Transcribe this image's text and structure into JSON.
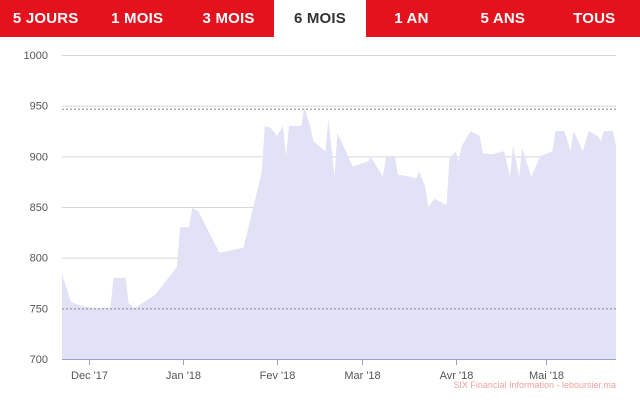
{
  "tabs": [
    {
      "label": "5 JOURS",
      "active": false
    },
    {
      "label": "1 MOIS",
      "active": false
    },
    {
      "label": "3 MOIS",
      "active": false
    },
    {
      "label": "6 MOIS",
      "active": true
    },
    {
      "label": "1 AN",
      "active": false
    },
    {
      "label": "5 ANS",
      "active": false
    },
    {
      "label": "TOUS",
      "active": false
    }
  ],
  "credit": "SIX Financial Information - leboursier.ma",
  "colors": {
    "tab_bg": "#e3121c",
    "tab_text": "#ffffff",
    "active_tab_bg": "#ffffff",
    "active_tab_text": "#333333",
    "area_fill": "#e1e2f5",
    "grid": "#d7d7d7",
    "reference_line": "#888888"
  },
  "chart_data": {
    "type": "area",
    "ylim": [
      700,
      1000
    ],
    "yticks": [
      700,
      750,
      800,
      850,
      900,
      950,
      1000
    ],
    "reference_lines": [
      947,
      750
    ],
    "xlabels": [
      {
        "label": "Dec '17",
        "date": "2017-12-01"
      },
      {
        "label": "Jan '18",
        "date": "2018-01-01"
      },
      {
        "label": "Fev '18",
        "date": "2018-02-01"
      },
      {
        "label": "Mar '18",
        "date": "2018-03-01"
      },
      {
        "label": "Avr '18",
        "date": "2018-04-01"
      },
      {
        "label": "Mai '18",
        "date": "2018-05-01"
      }
    ],
    "x_range": [
      "2017-11-22",
      "2018-05-24"
    ],
    "series": [
      {
        "points": [
          [
            "2017-11-22",
            784
          ],
          [
            "2017-11-25",
            756
          ],
          [
            "2017-11-29",
            752
          ],
          [
            "2017-12-03",
            750
          ],
          [
            "2017-12-06",
            750
          ],
          [
            "2017-12-08",
            750
          ],
          [
            "2017-12-09",
            780
          ],
          [
            "2017-12-13",
            780
          ],
          [
            "2017-12-14",
            755
          ],
          [
            "2017-12-16",
            750
          ],
          [
            "2017-12-23",
            764
          ],
          [
            "2017-12-30",
            791
          ],
          [
            "2017-12-31",
            830
          ],
          [
            "2018-01-03",
            830
          ],
          [
            "2018-01-04",
            849
          ],
          [
            "2018-01-06",
            846
          ],
          [
            "2018-01-13",
            805
          ],
          [
            "2018-01-18",
            808
          ],
          [
            "2018-01-21",
            810
          ],
          [
            "2018-01-27",
            885
          ],
          [
            "2018-01-28",
            930
          ],
          [
            "2018-01-30",
            928
          ],
          [
            "2018-02-01",
            920
          ],
          [
            "2018-02-03",
            930
          ],
          [
            "2018-02-04",
            900
          ],
          [
            "2018-02-05",
            930
          ],
          [
            "2018-02-09",
            930
          ],
          [
            "2018-02-10",
            948
          ],
          [
            "2018-02-12",
            930
          ],
          [
            "2018-02-13",
            915
          ],
          [
            "2018-02-17",
            905
          ],
          [
            "2018-02-18",
            937
          ],
          [
            "2018-02-20",
            880
          ],
          [
            "2018-02-21",
            923
          ],
          [
            "2018-02-26",
            890
          ],
          [
            "2018-03-03",
            895
          ],
          [
            "2018-03-04",
            899
          ],
          [
            "2018-03-07",
            885
          ],
          [
            "2018-03-08",
            880
          ],
          [
            "2018-03-09",
            899
          ],
          [
            "2018-03-12",
            899
          ],
          [
            "2018-03-13",
            882
          ],
          [
            "2018-03-17",
            880
          ],
          [
            "2018-03-19",
            878
          ],
          [
            "2018-03-20",
            885
          ],
          [
            "2018-03-22",
            870
          ],
          [
            "2018-03-23",
            850
          ],
          [
            "2018-03-25",
            858
          ],
          [
            "2018-03-29",
            852
          ],
          [
            "2018-03-30",
            898
          ],
          [
            "2018-04-01",
            905
          ],
          [
            "2018-04-02",
            895
          ],
          [
            "2018-04-03",
            910
          ],
          [
            "2018-04-06",
            925
          ],
          [
            "2018-04-09",
            920
          ],
          [
            "2018-04-10",
            903
          ],
          [
            "2018-04-13",
            902
          ],
          [
            "2018-04-17",
            905
          ],
          [
            "2018-04-19",
            880
          ],
          [
            "2018-04-20",
            910
          ],
          [
            "2018-04-22",
            880
          ],
          [
            "2018-04-23",
            908
          ],
          [
            "2018-04-26",
            880
          ],
          [
            "2018-04-29",
            900
          ],
          [
            "2018-05-03",
            905
          ],
          [
            "2018-05-04",
            925
          ],
          [
            "2018-05-07",
            925
          ],
          [
            "2018-05-09",
            905
          ],
          [
            "2018-05-10",
            925
          ],
          [
            "2018-05-13",
            905
          ],
          [
            "2018-05-15",
            925
          ],
          [
            "2018-05-18",
            920
          ],
          [
            "2018-05-19",
            915
          ],
          [
            "2018-05-20",
            925
          ],
          [
            "2018-05-23",
            925
          ],
          [
            "2018-05-24",
            910
          ]
        ]
      }
    ]
  }
}
